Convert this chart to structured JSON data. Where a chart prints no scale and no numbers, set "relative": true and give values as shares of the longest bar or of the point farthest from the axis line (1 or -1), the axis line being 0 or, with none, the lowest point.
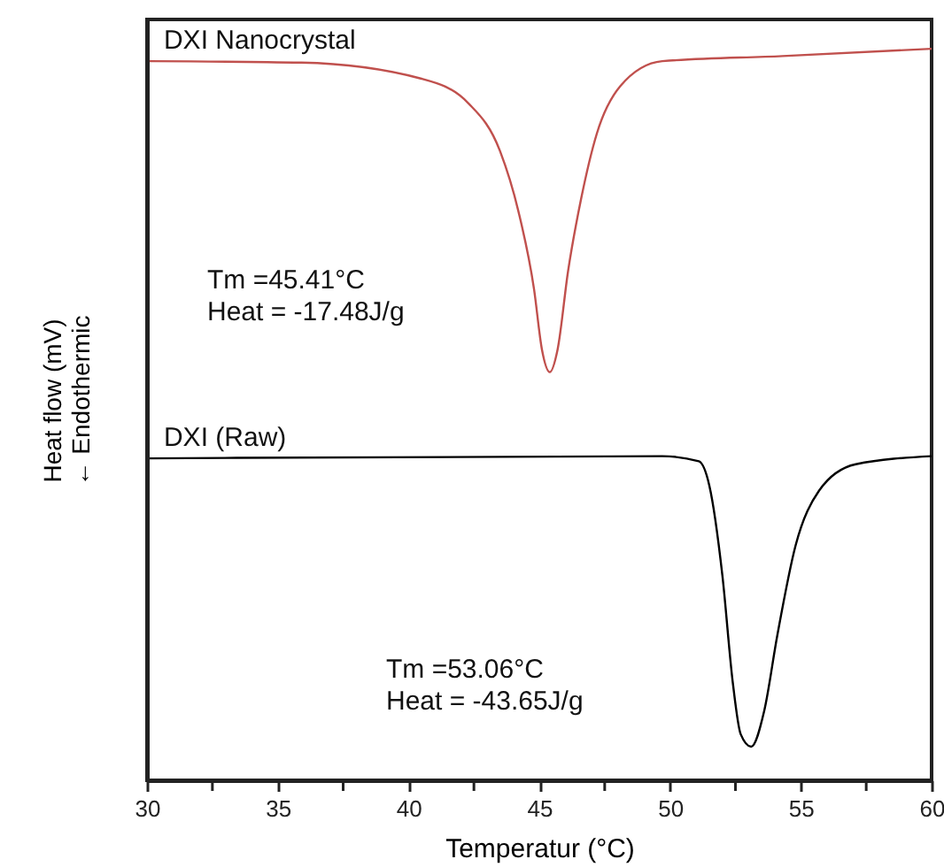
{
  "chart_data": {
    "type": "line",
    "relative": true,
    "xlabel": "Temperatur (°C)",
    "ylabel": "Heat flow (mV)\n← Endothermic",
    "xlim": [
      30,
      60
    ],
    "xticks": [
      30,
      {
        "value": 32.5,
        "label": null
      },
      35,
      {
        "value": 37.5,
        "label": null
      },
      40,
      {
        "value": 42.5,
        "label": null
      },
      45,
      {
        "value": 47.5,
        "label": null
      },
      50,
      {
        "value": 52.5,
        "label": null
      },
      55,
      {
        "value": 57.5,
        "label": null
      },
      60
    ],
    "line_style": "solid",
    "annotations": [
      "Tm =45.41°C\nHeat =  -17.48J/g",
      "Tm =53.06°C\nHeat =  -43.65J/g"
    ],
    "series": [
      {
        "name": "DXI Nanocrystal",
        "color": "#c0504d",
        "x": [
          30.1,
          35.9,
          40.5,
          42.3,
          43.5,
          44.2,
          44.8,
          45.1,
          45.4,
          45.7,
          46.1,
          46.6,
          47.2,
          48.1,
          49.7,
          54.3,
          60
        ],
        "values": [
          0.983,
          0.981,
          0.959,
          0.925,
          0.86,
          0.778,
          0.671,
          0.589,
          0.558,
          0.589,
          0.696,
          0.795,
          0.884,
          0.949,
          0.983,
          0.99,
          1
        ]
      },
      {
        "name": "DXI (Raw)",
        "color": "#000000",
        "x": [
          30.1,
          49.7,
          51.1,
          51.5,
          52.0,
          52.4,
          52.7,
          53.1,
          53.6,
          54.1,
          54.8,
          55.7,
          57.1,
          60
        ],
        "values": [
          0.44,
          0.443,
          0.436,
          0.403,
          0.28,
          0.133,
          0.063,
          0.046,
          0.095,
          0.198,
          0.321,
          0.396,
          0.432,
          0.443
        ]
      }
    ]
  }
}
